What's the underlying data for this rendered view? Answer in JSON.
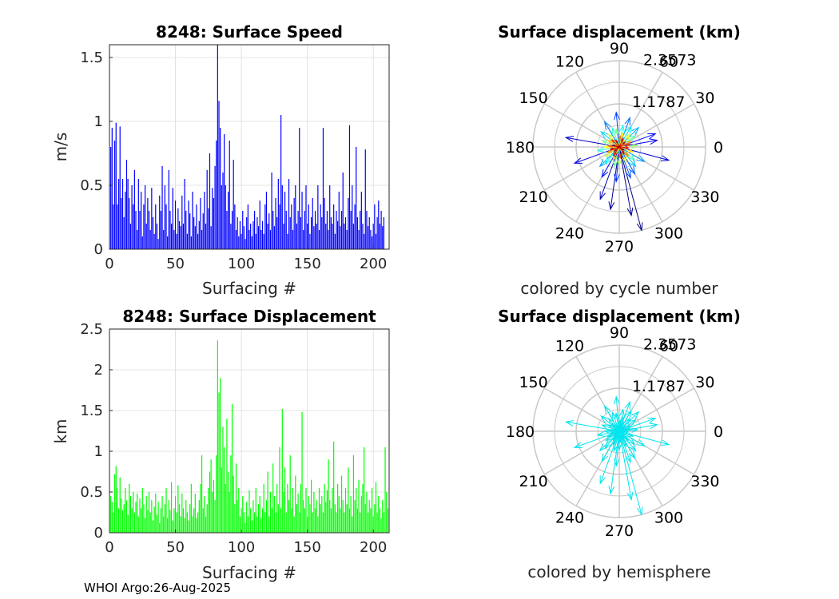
{
  "footer": "WHOI Argo:26-Aug-2025",
  "colors": {
    "speed_bars": "#0000ff",
    "displacement_bars": "#00ff00",
    "hemisphere": "#00e5ee",
    "polar_grid": "#c8c8c8",
    "axis_box": "#262626"
  },
  "chart_data": [
    {
      "type": "bar",
      "title": "8248: Surface Speed",
      "xlabel": "Surfacing #",
      "ylabel": "m/s",
      "xlim": [
        0,
        212
      ],
      "ylim": [
        0,
        1.6
      ],
      "xticks": [
        0,
        50,
        100,
        150,
        200
      ],
      "yticks": [
        0,
        0.5,
        1,
        1.5
      ],
      "ytick_labels": [
        "0",
        "0.5",
        "1",
        "1.5"
      ],
      "notable_values": [
        {
          "x": 82,
          "y": 1.6
        },
        {
          "x": 83,
          "y": 1.16
        },
        {
          "x": 129,
          "y": 1.05
        },
        {
          "x": 145,
          "y": 0.95
        },
        {
          "x": 164,
          "y": 0.95
        },
        {
          "x": 185,
          "y": 0.97
        }
      ],
      "values": [
        0.8,
        0.95,
        0.35,
        0.85,
        0.99,
        0.35,
        0.55,
        0.96,
        0.4,
        0.55,
        0.25,
        0.45,
        0.7,
        0.55,
        0.4,
        0.2,
        0.5,
        0.35,
        0.62,
        0.3,
        0.15,
        0.55,
        0.3,
        0.45,
        0.1,
        0.35,
        0.5,
        0.2,
        0.4,
        0.3,
        0.15,
        0.48,
        0.25,
        0.12,
        0.35,
        0.2,
        0.08,
        0.42,
        0.3,
        0.65,
        0.15,
        0.5,
        0.35,
        0.1,
        0.62,
        0.3,
        0.2,
        0.48,
        0.15,
        0.38,
        0.12,
        0.32,
        0.22,
        0.18,
        0.42,
        0.2,
        0.55,
        0.3,
        0.12,
        0.38,
        0.28,
        0.1,
        0.45,
        0.25,
        0.18,
        0.35,
        0.12,
        0.22,
        0.4,
        0.15,
        0.28,
        0.45,
        0.2,
        0.62,
        0.32,
        0.75,
        0.18,
        0.48,
        0.4,
        0.65,
        0.85,
        1.6,
        1.16,
        0.95,
        0.5,
        0.6,
        0.9,
        0.5,
        0.3,
        0.45,
        0.85,
        0.2,
        0.3,
        0.7,
        0.35,
        0.15,
        0.25,
        0.1,
        0.22,
        0.12,
        0.3,
        0.18,
        0.08,
        0.25,
        0.35,
        0.15,
        0.2,
        0.1,
        0.22,
        0.3,
        0.12,
        0.25,
        0.18,
        0.38,
        0.15,
        0.22,
        0.12,
        0.35,
        0.45,
        0.2,
        0.28,
        0.15,
        0.6,
        0.3,
        0.18,
        0.4,
        0.25,
        0.55,
        0.35,
        1.05,
        0.5,
        0.2,
        0.45,
        0.3,
        0.12,
        0.55,
        0.25,
        0.35,
        0.15,
        0.4,
        0.5,
        0.2,
        0.3,
        0.95,
        0.25,
        0.45,
        0.15,
        0.3,
        0.5,
        0.2,
        0.35,
        0.12,
        0.25,
        0.4,
        0.18,
        0.3,
        0.2,
        0.5,
        0.15,
        0.35,
        0.25,
        0.95,
        0.4,
        0.2,
        0.3,
        0.15,
        0.5,
        0.25,
        0.2,
        0.35,
        0.12,
        0.3,
        0.22,
        0.45,
        0.18,
        0.3,
        0.6,
        0.2,
        0.25,
        0.15,
        0.4,
        0.97,
        0.3,
        0.5,
        0.2,
        0.35,
        0.8,
        0.25,
        0.15,
        0.3,
        0.45,
        0.2,
        0.12,
        0.78,
        0.3,
        0.18,
        0.25,
        0.15,
        0.1,
        0.2,
        0.35,
        0.12,
        0.25,
        0.38,
        0.2,
        0.3,
        0.18,
        0.25
      ],
      "series_color": "#0000ff"
    },
    {
      "type": "bar",
      "title": "8248: Surface Displacement",
      "xlabel": "Surfacing #",
      "ylabel": "km",
      "xlim": [
        0,
        212
      ],
      "ylim": [
        0,
        2.5
      ],
      "xticks": [
        0,
        50,
        100,
        150,
        200
      ],
      "yticks": [
        0,
        0.5,
        1,
        1.5,
        2,
        2.5
      ],
      "ytick_labels": [
        "0",
        "0.5",
        "1",
        "1.5",
        "2",
        "2.5"
      ],
      "notable_values": [
        {
          "x": 82,
          "y": 2.36
        },
        {
          "x": 83,
          "y": 1.72
        },
        {
          "x": 84,
          "y": 1.9
        },
        {
          "x": 129,
          "y": 1.52
        },
        {
          "x": 145,
          "y": 1.48
        },
        {
          "x": 207,
          "y": 1.05
        }
      ],
      "values": [
        0.45,
        0.38,
        0.25,
        0.72,
        0.82,
        0.55,
        0.3,
        0.68,
        0.42,
        0.28,
        0.35,
        0.55,
        0.4,
        0.22,
        0.6,
        0.45,
        0.3,
        0.5,
        0.25,
        0.38,
        0.48,
        0.2,
        0.42,
        0.3,
        0.55,
        0.35,
        0.18,
        0.45,
        0.28,
        0.5,
        0.25,
        0.4,
        0.15,
        0.32,
        0.48,
        0.22,
        0.38,
        0.12,
        0.3,
        0.45,
        0.2,
        0.35,
        0.55,
        0.18,
        0.4,
        0.28,
        0.62,
        0.15,
        0.3,
        0.45,
        0.25,
        0.58,
        0.35,
        0.2,
        0.48,
        0.3,
        0.18,
        0.4,
        0.25,
        0.15,
        0.35,
        0.6,
        0.2,
        0.3,
        0.48,
        0.18,
        0.25,
        0.4,
        0.6,
        0.95,
        0.3,
        0.45,
        0.2,
        0.35,
        0.55,
        0.75,
        0.9,
        0.5,
        0.65,
        0.4,
        0.95,
        2.36,
        1.72,
        1.9,
        0.8,
        1.3,
        1.05,
        0.6,
        1.4,
        0.75,
        0.5,
        0.95,
        1.58,
        0.7,
        0.35,
        0.85,
        0.4,
        0.55,
        0.2,
        0.3,
        0.45,
        0.25,
        0.12,
        0.38,
        0.2,
        0.52,
        0.3,
        0.15,
        0.4,
        0.25,
        0.55,
        0.2,
        0.35,
        0.45,
        0.18,
        0.3,
        0.6,
        0.25,
        0.4,
        0.75,
        0.2,
        0.5,
        0.3,
        0.85,
        0.45,
        0.25,
        0.6,
        0.35,
        1.05,
        0.3,
        1.52,
        0.5,
        0.8,
        0.25,
        0.6,
        0.4,
        0.95,
        0.3,
        0.55,
        0.2,
        0.7,
        0.35,
        0.48,
        0.25,
        0.6,
        1.48,
        0.4,
        0.3,
        0.55,
        0.2,
        0.45,
        0.35,
        0.65,
        0.25,
        0.5,
        0.3,
        0.4,
        0.2,
        0.55,
        0.35,
        0.45,
        0.25,
        0.6,
        0.38,
        0.52,
        0.9,
        0.4,
        0.3,
        0.55,
        1.12,
        0.35,
        0.25,
        0.6,
        0.45,
        0.3,
        0.7,
        0.4,
        0.25,
        0.55,
        0.35,
        0.8,
        0.3,
        0.45,
        0.2,
        0.95,
        0.4,
        0.55,
        0.3,
        0.65,
        0.25,
        0.45,
        0.6,
        1.05,
        0.35,
        0.5,
        0.25,
        0.4,
        0.3,
        0.55,
        0.2,
        0.35,
        0.62,
        0.25,
        0.45,
        0.3,
        0.18,
        0.4,
        0.25,
        1.05,
        0.5,
        0.3
      ],
      "series_color": "#00ff00"
    },
    {
      "type": "polar",
      "title": "Surface displacement (km)",
      "caption": "colored by cycle number",
      "r_ticks": [
        1.1787,
        2.3573
      ],
      "r_tick_labels": [
        "1.1787",
        "2.3573"
      ],
      "r_max": 2.3573,
      "angle_ticks": [
        0,
        30,
        60,
        90,
        120,
        150,
        180,
        210,
        240,
        270,
        300,
        330
      ],
      "angle_tick_labels": [
        "0",
        "30",
        "60",
        "90",
        "120",
        "150",
        "180",
        "210",
        "240",
        "270",
        "300",
        "330"
      ],
      "color_mode": "cycle",
      "vectors": [
        {
          "angle": 285,
          "r": 2.36
        },
        {
          "angle": 280,
          "r": 1.9
        },
        {
          "angle": 262,
          "r": 1.72
        },
        {
          "angle": 250,
          "r": 1.52
        },
        {
          "angle": 170,
          "r": 1.48
        },
        {
          "angle": 345,
          "r": 1.4
        },
        {
          "angle": 200,
          "r": 1.3
        },
        {
          "angle": 10,
          "r": 1.05
        },
        {
          "angle": 20,
          "r": 1.05
        },
        {
          "angle": 240,
          "r": 0.95
        },
        {
          "angle": 265,
          "r": 0.95
        },
        {
          "angle": 95,
          "r": 0.95
        },
        {
          "angle": 290,
          "r": 0.9
        },
        {
          "angle": 300,
          "r": 0.85
        },
        {
          "angle": 70,
          "r": 0.85
        },
        {
          "angle": 120,
          "r": 0.8
        },
        {
          "angle": 330,
          "r": 0.8
        },
        {
          "angle": 225,
          "r": 0.75
        },
        {
          "angle": 45,
          "r": 0.75
        },
        {
          "angle": 310,
          "r": 0.7
        },
        {
          "angle": 140,
          "r": 0.65
        },
        {
          "angle": 60,
          "r": 0.65
        },
        {
          "angle": 230,
          "r": 0.6
        },
        {
          "angle": 80,
          "r": 0.6
        },
        {
          "angle": 190,
          "r": 0.6
        },
        {
          "angle": 110,
          "r": 0.55
        },
        {
          "angle": 320,
          "r": 0.55
        },
        {
          "angle": 35,
          "r": 0.55
        },
        {
          "angle": 255,
          "r": 0.55
        },
        {
          "angle": 160,
          "r": 0.5
        },
        {
          "angle": 100,
          "r": 0.5
        },
        {
          "angle": 5,
          "r": 0.5
        },
        {
          "angle": 270,
          "r": 0.5
        },
        {
          "angle": 215,
          "r": 0.45
        },
        {
          "angle": 130,
          "r": 0.45
        },
        {
          "angle": 50,
          "r": 0.45
        },
        {
          "angle": 295,
          "r": 0.45
        },
        {
          "angle": 180,
          "r": 0.4
        },
        {
          "angle": 75,
          "r": 0.4
        },
        {
          "angle": 340,
          "r": 0.4
        },
        {
          "angle": 245,
          "r": 0.4
        },
        {
          "angle": 150,
          "r": 0.35
        },
        {
          "angle": 25,
          "r": 0.35
        },
        {
          "angle": 205,
          "r": 0.35
        },
        {
          "angle": 315,
          "r": 0.35
        },
        {
          "angle": 85,
          "r": 0.3
        },
        {
          "angle": 175,
          "r": 0.3
        },
        {
          "angle": 275,
          "r": 0.3
        },
        {
          "angle": 15,
          "r": 0.3
        },
        {
          "angle": 135,
          "r": 0.28
        },
        {
          "angle": 235,
          "r": 0.28
        },
        {
          "angle": 355,
          "r": 0.25
        },
        {
          "angle": 65,
          "r": 0.25
        },
        {
          "angle": 195,
          "r": 0.25
        },
        {
          "angle": 305,
          "r": 0.22
        },
        {
          "angle": 115,
          "r": 0.2
        },
        {
          "angle": 40,
          "r": 0.2
        },
        {
          "angle": 220,
          "r": 0.18
        },
        {
          "angle": 165,
          "r": 0.18
        },
        {
          "angle": 325,
          "r": 0.15
        }
      ]
    },
    {
      "type": "polar",
      "title": "Surface displacement (km)",
      "caption": "colored by hemisphere",
      "r_ticks": [
        1.1787,
        2.3573
      ],
      "r_tick_labels": [
        "1.1787",
        "2.3573"
      ],
      "r_max": 2.3573,
      "angle_ticks": [
        0,
        30,
        60,
        90,
        120,
        150,
        180,
        210,
        240,
        270,
        300,
        330
      ],
      "angle_tick_labels": [
        "0",
        "30",
        "60",
        "90",
        "120",
        "150",
        "180",
        "210",
        "240",
        "270",
        "300",
        "330"
      ],
      "color_mode": "hemisphere",
      "series_color": "#00e5ee"
    }
  ]
}
